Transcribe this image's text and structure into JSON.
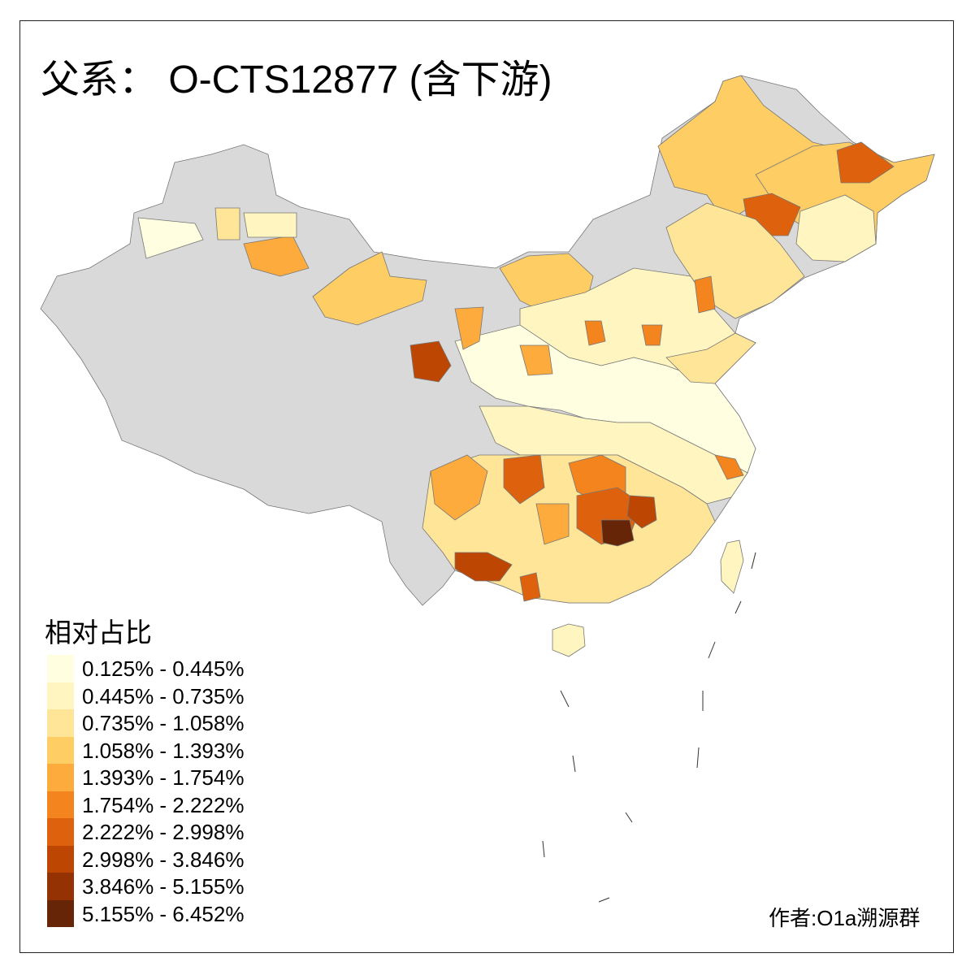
{
  "title": "父系： O-CTS12877 (含下游)",
  "legend": {
    "title": "相对占比",
    "items": [
      {
        "label": "0.125% - 0.445%",
        "color": "#FFFEE0"
      },
      {
        "label": "0.445% - 0.735%",
        "color": "#FFF5C0"
      },
      {
        "label": "0.735% - 1.058%",
        "color": "#FEE598"
      },
      {
        "label": "1.058% - 1.393%",
        "color": "#FECE65"
      },
      {
        "label": "1.393% - 1.754%",
        "color": "#FDAB3C"
      },
      {
        "label": "1.754% - 2.222%",
        "color": "#F3841E"
      },
      {
        "label": "2.222% - 2.998%",
        "color": "#DE620E"
      },
      {
        "label": "2.998% - 3.846%",
        "color": "#BD4603"
      },
      {
        "label": "3.846% - 5.155%",
        "color": "#943204"
      },
      {
        "label": "5.155% - 6.452%",
        "color": "#662506"
      }
    ]
  },
  "no_data_color": "#D9D9D9",
  "author": "作者:O1a溯源群"
}
